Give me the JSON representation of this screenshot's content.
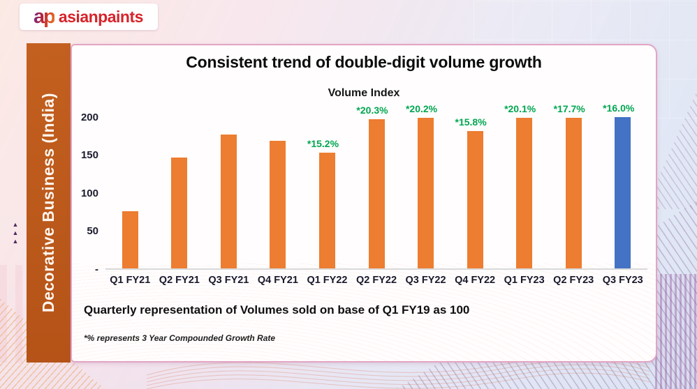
{
  "logo": {
    "brand_mark": "ap",
    "brand_name": "asianpaints"
  },
  "sidebar": {
    "label": "Decorative Business (India)"
  },
  "card": {
    "title": "Consistent trend of double-digit volume growth",
    "caption": "Quarterly representation of Volumes sold on base of Q1 FY19 as 100",
    "footnote": "*% represents 3 Year Compounded Growth Rate"
  },
  "chart_data": {
    "type": "bar",
    "title": "Volume Index",
    "categories": [
      "Q1 FY21",
      "Q2 FY21",
      "Q3 FY21",
      "Q4 FY21",
      "Q1 FY22",
      "Q2 FY22",
      "Q3 FY22",
      "Q4 FY22",
      "Q1 FY23",
      "Q2 FY23",
      "Q3 FY23"
    ],
    "values": [
      75,
      146,
      176,
      168,
      152,
      196,
      198,
      181,
      198,
      198,
      200
    ],
    "bar_labels": [
      "",
      "",
      "",
      "",
      "*15.2%",
      "*20.3%",
      "*20.2%",
      "*15.8%",
      "*20.1%",
      "*17.7%",
      "*16.0%"
    ],
    "yticks": [
      {
        "value": 200,
        "label": "200"
      },
      {
        "value": 150,
        "label": "150"
      },
      {
        "value": 100,
        "label": "100"
      },
      {
        "value": 50,
        "label": "50"
      },
      {
        "value": 0,
        "label": "-"
      }
    ],
    "ylim": [
      0,
      220
    ],
    "xlabel": "",
    "ylabel": "",
    "grid": false,
    "legend": false,
    "bar_color": "#ED7D31",
    "highlight_color": "#4472C4",
    "highlight_index": 10,
    "value_label_color": "#00A651"
  },
  "colors": {
    "sidebar": "#BB5A1D",
    "brand_red": "#D7232A",
    "card_border": "#E3A4C4",
    "axis_text": "#1B1B2F",
    "baseline": "#D9D9D9"
  }
}
